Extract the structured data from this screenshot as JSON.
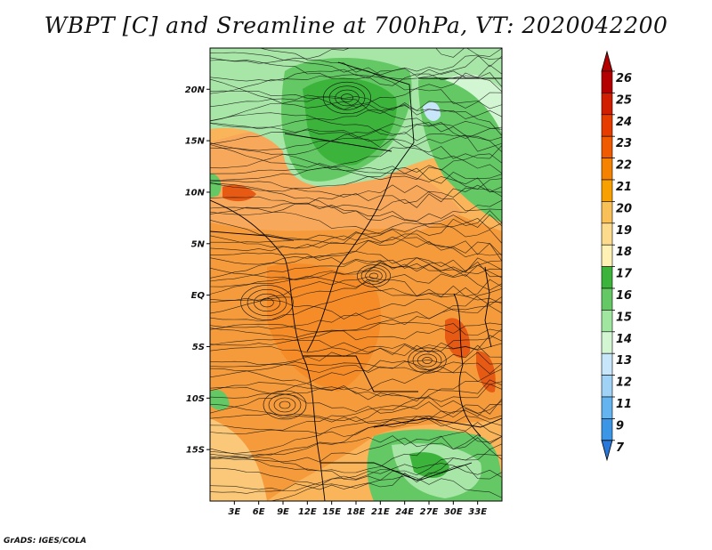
{
  "title": "WBPT [C] and Sreamline at 700hPa, VT: 2020042200",
  "footer": "GrADS: IGES/COLA",
  "map": {
    "lon_range": [
      0,
      36
    ],
    "lat_range": [
      -20,
      24
    ],
    "lat_ticks": [
      {
        "value": 20,
        "label": "20N"
      },
      {
        "value": 15,
        "label": "15N"
      },
      {
        "value": 10,
        "label": "10N"
      },
      {
        "value": 5,
        "label": "5N"
      },
      {
        "value": 0,
        "label": "EQ"
      },
      {
        "value": -5,
        "label": "5S"
      },
      {
        "value": -10,
        "label": "10S"
      },
      {
        "value": -15,
        "label": "15S"
      }
    ],
    "lon_ticks": [
      {
        "value": 3,
        "label": "3E"
      },
      {
        "value": 6,
        "label": "6E"
      },
      {
        "value": 9,
        "label": "9E"
      },
      {
        "value": 12,
        "label": "12E"
      },
      {
        "value": 15,
        "label": "15E"
      },
      {
        "value": 18,
        "label": "18E"
      },
      {
        "value": 21,
        "label": "21E"
      },
      {
        "value": 24,
        "label": "24E"
      },
      {
        "value": 27,
        "label": "27E"
      },
      {
        "value": 30,
        "label": "30E"
      },
      {
        "value": 33,
        "label": "33E"
      }
    ]
  },
  "colorbar": {
    "labels": [
      "26",
      "25",
      "24",
      "23",
      "22",
      "21",
      "20",
      "19",
      "18",
      "17",
      "16",
      "15",
      "14",
      "13",
      "12",
      "11",
      "9",
      "7"
    ],
    "colors": [
      "#b40000",
      "#d21e00",
      "#e63c00",
      "#f05a00",
      "#f58200",
      "#f8a000",
      "#fac058",
      "#fcdc8c",
      "#fff0b4",
      "#3cb43c",
      "#64c864",
      "#a0e6a0",
      "#d2f5d2",
      "#c8e6fa",
      "#a0d2f5",
      "#64b4f0",
      "#3c96e6",
      "#2878dc"
    ]
  }
}
